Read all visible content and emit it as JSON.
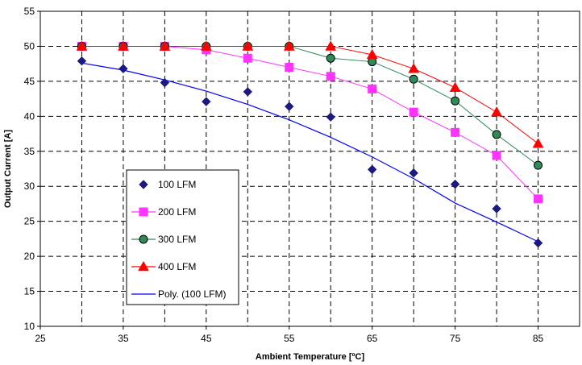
{
  "chart_data": {
    "type": "scatter",
    "title": "",
    "xlabel": "Ambient Temperature [ºC]",
    "ylabel": "Output Current [A]",
    "xlim": [
      25,
      90
    ],
    "ylim": [
      10,
      55
    ],
    "xticks": [
      25,
      35,
      45,
      55,
      65,
      75,
      85
    ],
    "yticks": [
      10,
      15,
      20,
      25,
      30,
      35,
      40,
      45,
      50,
      55
    ],
    "grid": true,
    "legend_position": "bottom-left",
    "series": [
      {
        "name": "100 LFM",
        "marker": "diamond",
        "color": "#1a1a80",
        "x": [
          30,
          35,
          40,
          45,
          50,
          55,
          60,
          65,
          70,
          75,
          80,
          85
        ],
        "y": [
          47.9,
          46.8,
          44.8,
          42.1,
          43.5,
          41.4,
          39.9,
          32.4,
          31.9,
          30.3,
          26.8,
          21.9
        ]
      },
      {
        "name": "200 LFM",
        "marker": "square",
        "color": "#ff33ff",
        "x": [
          30,
          35,
          40,
          45,
          50,
          55,
          60,
          65,
          70,
          75,
          80,
          85
        ],
        "y": [
          50,
          50,
          50,
          49.5,
          48.3,
          47.0,
          45.7,
          43.9,
          40.6,
          37.7,
          34.4,
          28.2
        ]
      },
      {
        "name": "300 LFM",
        "marker": "circle",
        "color": "#2e8b57",
        "x": [
          30,
          35,
          40,
          45,
          50,
          55,
          60,
          65,
          70,
          75,
          80,
          85
        ],
        "y": [
          50,
          50,
          50,
          50,
          50,
          50,
          48.3,
          47.8,
          45.3,
          42.2,
          37.4,
          33.0
        ]
      },
      {
        "name": "400 LFM",
        "marker": "triangle",
        "color": "#ff0000",
        "x": [
          30,
          35,
          40,
          45,
          50,
          55,
          60,
          65,
          70,
          75,
          80,
          85
        ],
        "y": [
          50,
          50,
          50,
          50,
          50,
          50,
          50,
          48.8,
          46.8,
          44.1,
          40.6,
          36.1
        ]
      }
    ],
    "trendline": {
      "name": "Poly. (100 LFM)",
      "color": "#0000ff",
      "x": [
        30,
        35,
        40,
        45,
        50,
        55,
        60,
        65,
        70,
        75,
        80,
        85
      ],
      "y": [
        47.6,
        46.6,
        45.2,
        43.6,
        41.7,
        39.5,
        37.0,
        34.2,
        31.1,
        27.6,
        24.9,
        22.1
      ]
    }
  }
}
